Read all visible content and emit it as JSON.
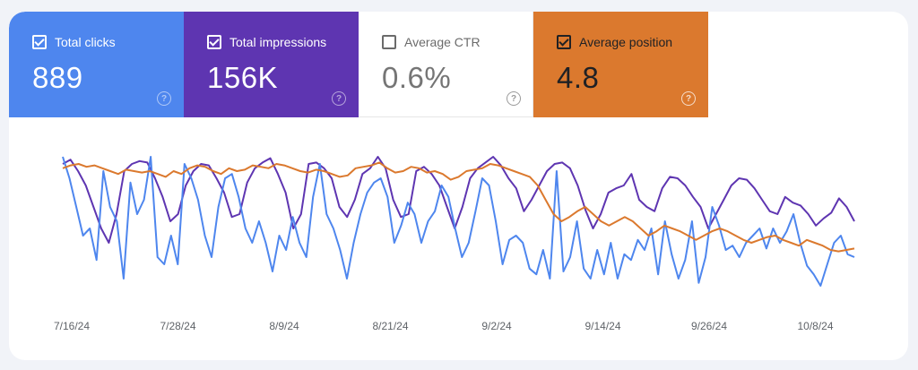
{
  "metrics": {
    "clicks": {
      "label": "Total clicks",
      "value": "889",
      "checked": true,
      "color": "#4e86ee"
    },
    "impressions": {
      "label": "Total impressions",
      "value": "156K",
      "checked": true,
      "color": "#5e35b1"
    },
    "ctr": {
      "label": "Average CTR",
      "value": "0.6%",
      "checked": false,
      "color": "#ffffff"
    },
    "position": {
      "label": "Average position",
      "value": "4.8",
      "checked": true,
      "color": "#db792e"
    },
    "help_glyph": "?"
  },
  "chart_data": {
    "type": "line",
    "title": "",
    "xlabel": "",
    "ylabel": "",
    "grid": false,
    "legend": "none",
    "x_start": "7/16/24",
    "x_ticks": [
      "7/16/24",
      "7/28/24",
      "8/9/24",
      "8/21/24",
      "9/2/24",
      "9/14/24",
      "9/26/24",
      "10/8/24"
    ],
    "ylim": [
      0,
      100
    ],
    "series": [
      {
        "key": "impressions",
        "color": "#5e35b1",
        "values": [
          95,
          98,
          90,
          80,
          65,
          50,
          40,
          60,
          90,
          95,
          97,
          96,
          85,
          72,
          55,
          60,
          80,
          90,
          95,
          94,
          85,
          75,
          58,
          60,
          82,
          92,
          96,
          99,
          88,
          75,
          50,
          60,
          95,
          96,
          92,
          85,
          65,
          58,
          70,
          88,
          92,
          100,
          92,
          70,
          58,
          60,
          90,
          93,
          88,
          80,
          65,
          50,
          65,
          85,
          92,
          96,
          100,
          94,
          85,
          78,
          62,
          70,
          80,
          90,
          95,
          96,
          92,
          80,
          63,
          50,
          60,
          75,
          78,
          80,
          88,
          70,
          65,
          62,
          78,
          86,
          85,
          80,
          72,
          65,
          50,
          60,
          70,
          80,
          85,
          84,
          78,
          70,
          62,
          60,
          72,
          68,
          66,
          60,
          52,
          57,
          61,
          71,
          65,
          55
        ],
        "scale_note": "values normalized to 0-100"
      },
      {
        "key": "clicks",
        "color": "#4e86ee",
        "values": [
          100,
          85,
          65,
          45,
          50,
          28,
          90,
          65,
          55,
          15,
          82,
          60,
          70,
          100,
          30,
          25,
          45,
          25,
          95,
          85,
          70,
          45,
          30,
          65,
          85,
          88,
          72,
          50,
          40,
          55,
          40,
          20,
          45,
          35,
          58,
          40,
          30,
          72,
          95,
          60,
          50,
          35,
          15,
          40,
          60,
          75,
          82,
          85,
          72,
          40,
          52,
          68,
          60,
          40,
          55,
          62,
          80,
          72,
          50,
          30,
          40,
          62,
          85,
          80,
          55,
          25,
          42,
          45,
          40,
          22,
          18,
          35,
          15,
          90,
          20,
          30,
          55,
          22,
          15,
          35,
          18,
          40,
          15,
          32,
          28,
          42,
          35,
          50,
          18,
          55,
          32,
          15,
          28,
          55,
          12,
          30,
          65,
          52,
          35,
          38,
          30,
          40,
          45,
          50,
          36,
          50,
          40,
          48,
          60,
          40,
          24,
          18,
          10,
          25,
          40,
          45,
          32,
          30
        ],
        "scale_note": "values normalized to 0-100"
      },
      {
        "key": "position",
        "color": "#db792e",
        "values": [
          92,
          94,
          95,
          93,
          94,
          92,
          90,
          88,
          91,
          90,
          89,
          90,
          88,
          86,
          90,
          88,
          92,
          94,
          93,
          90,
          88,
          92,
          90,
          91,
          94,
          93,
          92,
          95,
          94,
          92,
          90,
          89,
          91,
          90,
          88,
          86,
          87,
          92,
          93,
          94,
          96,
          92,
          89,
          90,
          93,
          92,
          89,
          90,
          88,
          84,
          86,
          90,
          91,
          92,
          95,
          94,
          92,
          90,
          88,
          86,
          80,
          70,
          60,
          55,
          58,
          62,
          65,
          60,
          55,
          52,
          55,
          58,
          55,
          50,
          45,
          48,
          52,
          50,
          48,
          45,
          42,
          45,
          48,
          50,
          48,
          45,
          42,
          40,
          42,
          44,
          45,
          42,
          40,
          38,
          42,
          40,
          38,
          35,
          34,
          35,
          36
        ]
      }
    ]
  }
}
